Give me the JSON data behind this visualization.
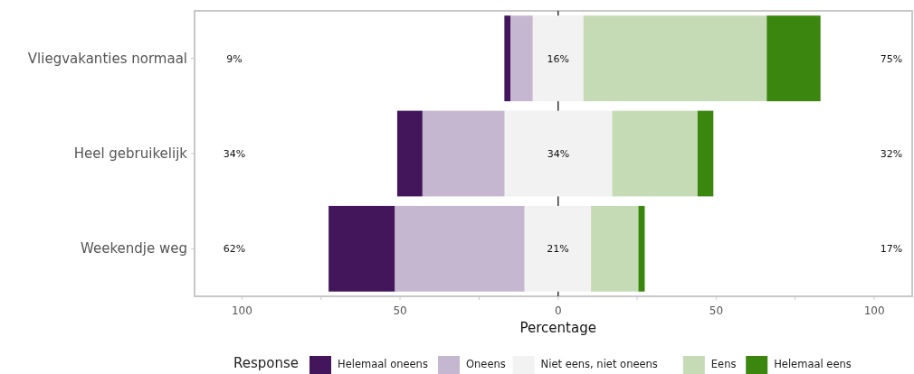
{
  "chart_data": {
    "type": "bar",
    "orientation": "horizontal",
    "xlabel": "Percentage",
    "legend_title": "Response",
    "legend": "bottom",
    "categories": [
      "Vliegvakanties normaal",
      "Heel gebruikelijk",
      "Weekendje weg"
    ],
    "series": [
      {
        "name": "Helemaal oneens",
        "color": "#43165c",
        "values": [
          2,
          8,
          21
        ],
        "base": [
          -17,
          -50.9,
          -72.6
        ]
      },
      {
        "name": "Oneens",
        "color": "#c6b7d0",
        "values": [
          7,
          26,
          41
        ],
        "base": [
          -15,
          -42.9,
          -51.6
        ]
      },
      {
        "name": "Niet eens, niet oneens",
        "color": "#f2f2f2",
        "values": [
          16,
          34,
          21
        ],
        "base": [
          -8,
          -16.9,
          -10.6
        ],
        "value_labels": [
          "16%",
          "34%",
          "21%"
        ]
      },
      {
        "name": "Eens",
        "color": "#c5dbb5",
        "values": [
          58,
          27,
          15
        ],
        "base": [
          8,
          17.1,
          10.4
        ]
      },
      {
        "name": "Helemaal eens",
        "color": "#3a860e",
        "values": [
          17,
          5,
          2
        ],
        "base": [
          66,
          44.1,
          25.4
        ]
      }
    ],
    "xlim": [
      -115,
      112
    ],
    "xticks": [
      {
        "value": -100,
        "label": "100"
      },
      {
        "value": -75,
        "label": null
      },
      {
        "value": -50,
        "label": "50"
      },
      {
        "value": -25,
        "label": null
      },
      0,
      {
        "value": 25,
        "label": null
      },
      50,
      {
        "value": 75,
        "label": null
      },
      100
    ],
    "ref_lines": [
      {
        "axis": "x",
        "value": 0,
        "color": "#333333"
      }
    ],
    "annotations": [
      "9%",
      "75%",
      "34%",
      "32%",
      "62%",
      "17%"
    ]
  }
}
